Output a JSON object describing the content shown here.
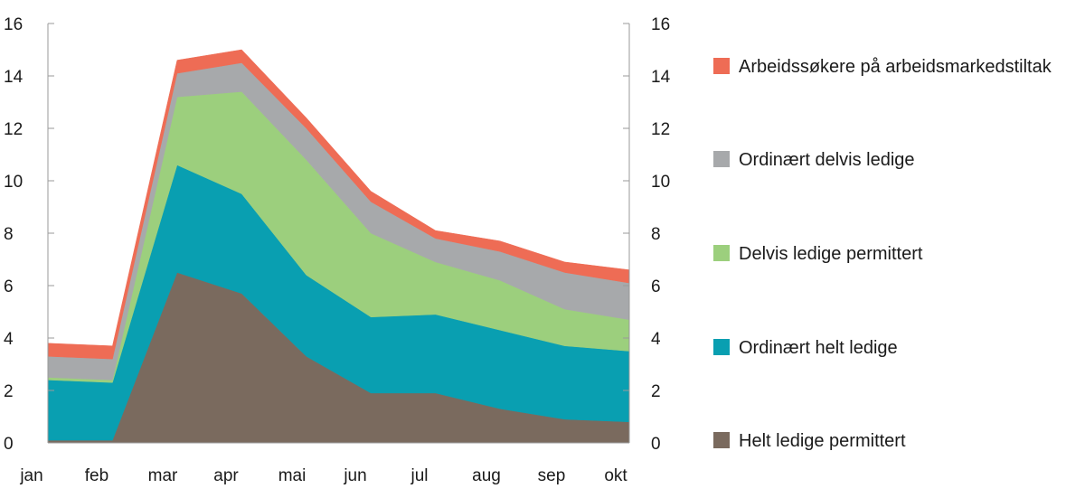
{
  "chart_data": {
    "type": "area",
    "stacked": true,
    "title": "",
    "xlabel": "",
    "ylabel": "",
    "ylim": [
      0,
      16
    ],
    "yticks": [
      0,
      2,
      4,
      6,
      8,
      10,
      12,
      14,
      16
    ],
    "ytick_labels": [
      "0",
      "2",
      "4",
      "6",
      "8",
      "10",
      "12",
      "14",
      "16"
    ],
    "secondary_y_axis": true,
    "grid": false,
    "legend_position": "right",
    "categories": [
      "jan",
      "feb",
      "mar",
      "apr",
      "mai",
      "jun",
      "jul",
      "aug",
      "sep",
      "okt"
    ],
    "series": [
      {
        "name": "Helt ledige permittert",
        "color": "#7a6a5e",
        "values": [
          0.1,
          0.1,
          6.5,
          5.7,
          3.3,
          1.9,
          1.9,
          1.3,
          0.9,
          0.8
        ]
      },
      {
        "name": "Ordinært helt ledige",
        "color": "#099fb1",
        "values": [
          2.3,
          2.2,
          4.1,
          3.8,
          3.1,
          2.9,
          3.0,
          3.0,
          2.8,
          2.7
        ]
      },
      {
        "name": "Delvis ledige permittert",
        "color": "#9ccf7d",
        "values": [
          0.1,
          0.1,
          2.6,
          3.9,
          4.4,
          3.2,
          2.0,
          1.9,
          1.4,
          1.2
        ]
      },
      {
        "name": "Ordinært delvis ledige",
        "color": "#a7a9ab",
        "values": [
          0.8,
          0.8,
          0.9,
          1.1,
          1.2,
          1.2,
          0.9,
          1.1,
          1.4,
          1.4
        ]
      },
      {
        "name": "Arbeidssøkere på arbeidsmarkedstiltak",
        "color": "#ee6c55",
        "values": [
          0.5,
          0.5,
          0.5,
          0.5,
          0.4,
          0.4,
          0.3,
          0.4,
          0.4,
          0.5
        ]
      }
    ],
    "legend_order": [
      "Arbeidssøkere på arbeidsmarkedstiltak",
      "Ordinært delvis ledige",
      "Delvis ledige permittert",
      "Ordinært helt ledige",
      "Helt ledige permittert"
    ]
  }
}
